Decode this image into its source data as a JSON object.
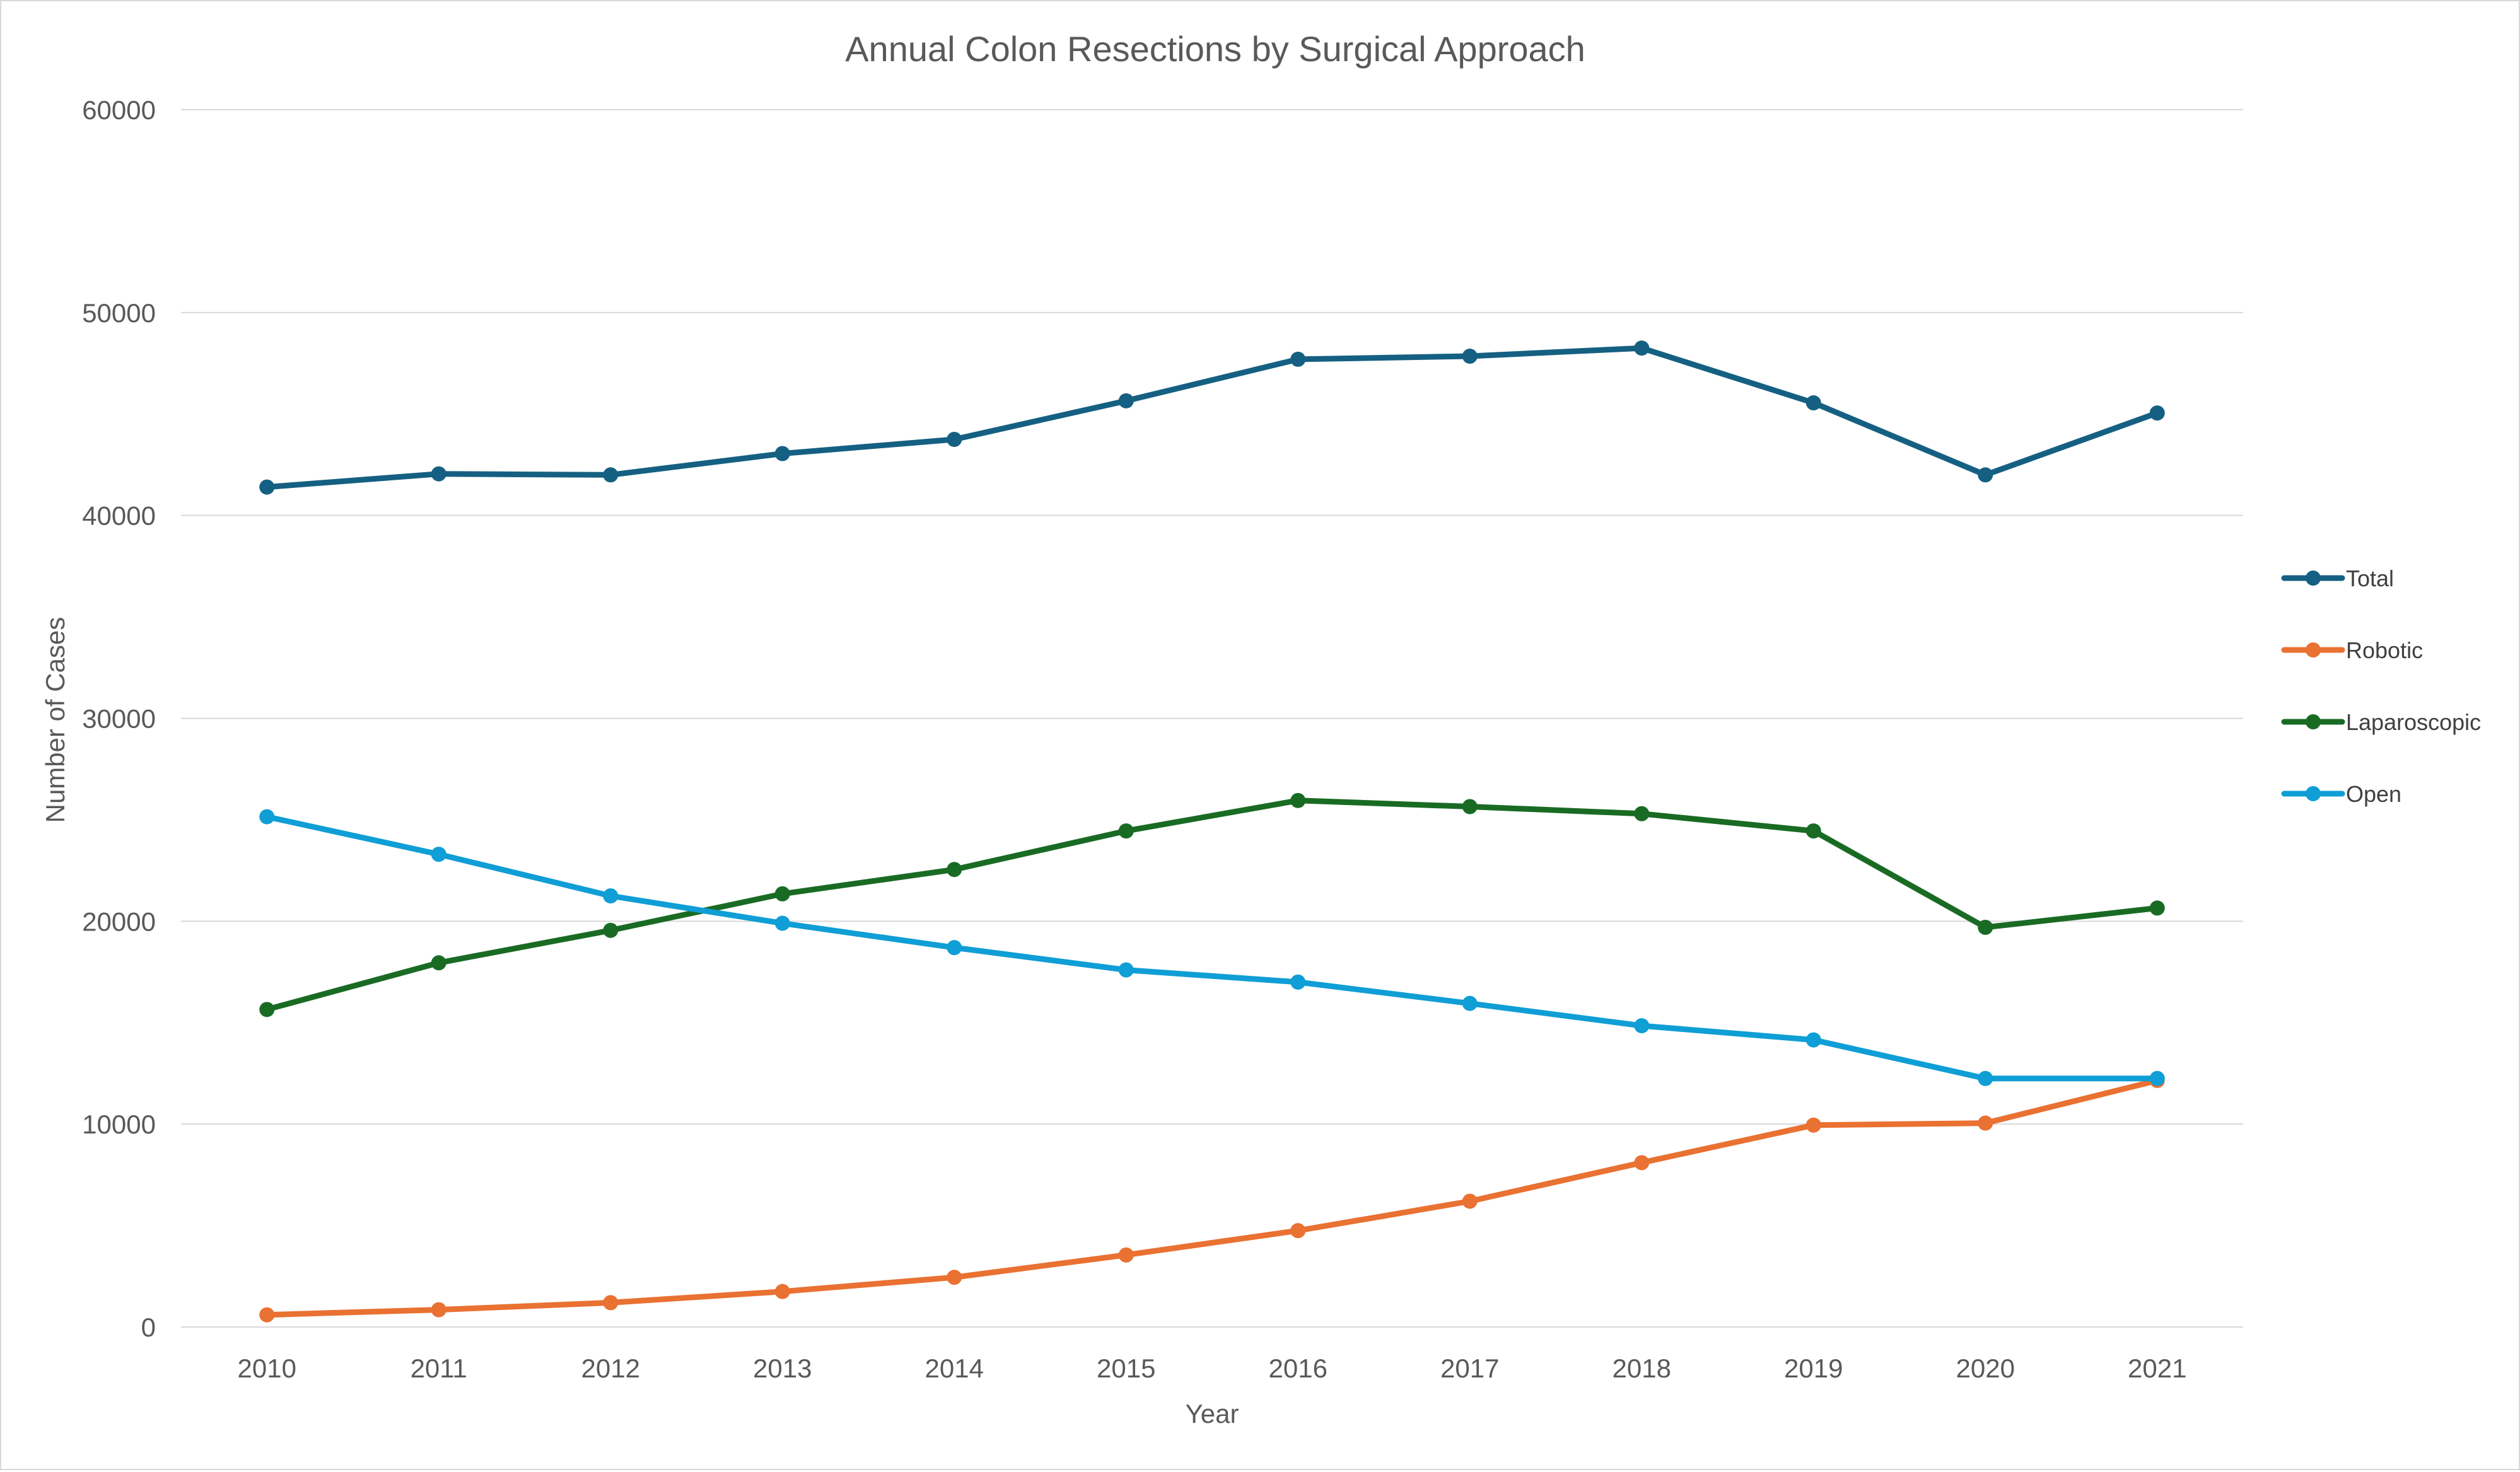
{
  "chart_data": {
    "type": "line",
    "title": "Annual Colon Resections by Surgical Approach",
    "xlabel": "Year",
    "ylabel": "Number of Cases",
    "ylim": [
      0,
      60000
    ],
    "yticks": [
      0,
      10000,
      20000,
      30000,
      40000,
      50000,
      60000
    ],
    "grid": true,
    "legend_position": "right",
    "categories": [
      "2010",
      "2011",
      "2012",
      "2013",
      "2014",
      "2015",
      "2016",
      "2017",
      "2018",
      "2019",
      "2020",
      "2021"
    ],
    "series": [
      {
        "name": "Total",
        "color": "#156082",
        "values": [
          41400,
          42050,
          42000,
          43050,
          43750,
          45650,
          47700,
          47850,
          48250,
          45550,
          42000,
          45050
        ]
      },
      {
        "name": "Robotic",
        "color": "#E97132",
        "values": [
          600,
          850,
          1200,
          1750,
          2450,
          3550,
          4750,
          6200,
          8100,
          9950,
          10050,
          12150
        ]
      },
      {
        "name": "Laparoscopic",
        "color": "#196B24",
        "values": [
          15650,
          17950,
          19550,
          21350,
          22550,
          24450,
          25950,
          25650,
          25300,
          24450,
          19700,
          20650
        ]
      },
      {
        "name": "Open",
        "color": "#0F9ED5",
        "values": [
          25150,
          23300,
          21250,
          19900,
          18700,
          17600,
          17000,
          15950,
          14850,
          14150,
          12250,
          12250
        ]
      }
    ]
  }
}
